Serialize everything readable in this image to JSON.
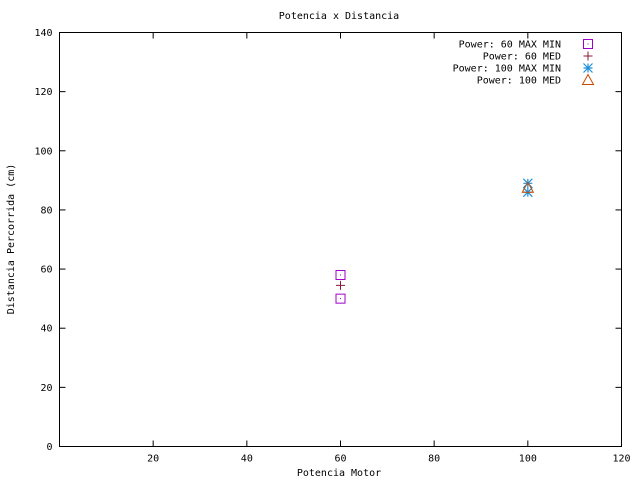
{
  "chart_data": {
    "type": "scatter",
    "title": "Potencia x Distancia",
    "xlabel": "Potencia Motor",
    "ylabel": "Distancia Percorrida (cm)",
    "xlim": [
      0,
      120
    ],
    "ylim": [
      0,
      140
    ],
    "xticks": [
      20,
      40,
      60,
      80,
      100,
      120
    ],
    "xtick_labels": [
      "20",
      "40",
      "60",
      "80",
      "100",
      "120"
    ],
    "yticks": [
      0,
      20,
      40,
      60,
      80,
      100,
      120,
      140
    ],
    "ytick_labels": [
      "0",
      "20",
      "40",
      "60",
      "80",
      "100",
      "120",
      "140"
    ],
    "grid": false,
    "legend_position": "top-right",
    "series": [
      {
        "name": "Power: 60 MAX MIN",
        "marker": "square",
        "color": "#a000c8",
        "points": [
          {
            "x": 60,
            "y": 58
          },
          {
            "x": 60,
            "y": 50
          }
        ]
      },
      {
        "name": "Power: 60 MED",
        "marker": "plus",
        "color": "#8b1a3a",
        "points": [
          {
            "x": 60,
            "y": 54.5
          }
        ]
      },
      {
        "name": "Power: 100 MAX MIN",
        "marker": "star",
        "color": "#1e8fd6",
        "points": [
          {
            "x": 100,
            "y": 89
          },
          {
            "x": 100,
            "y": 86
          }
        ]
      },
      {
        "name": "Power: 100 MED",
        "marker": "triangle",
        "color": "#cc4a00",
        "points": [
          {
            "x": 100,
            "y": 87.5
          }
        ]
      }
    ]
  }
}
